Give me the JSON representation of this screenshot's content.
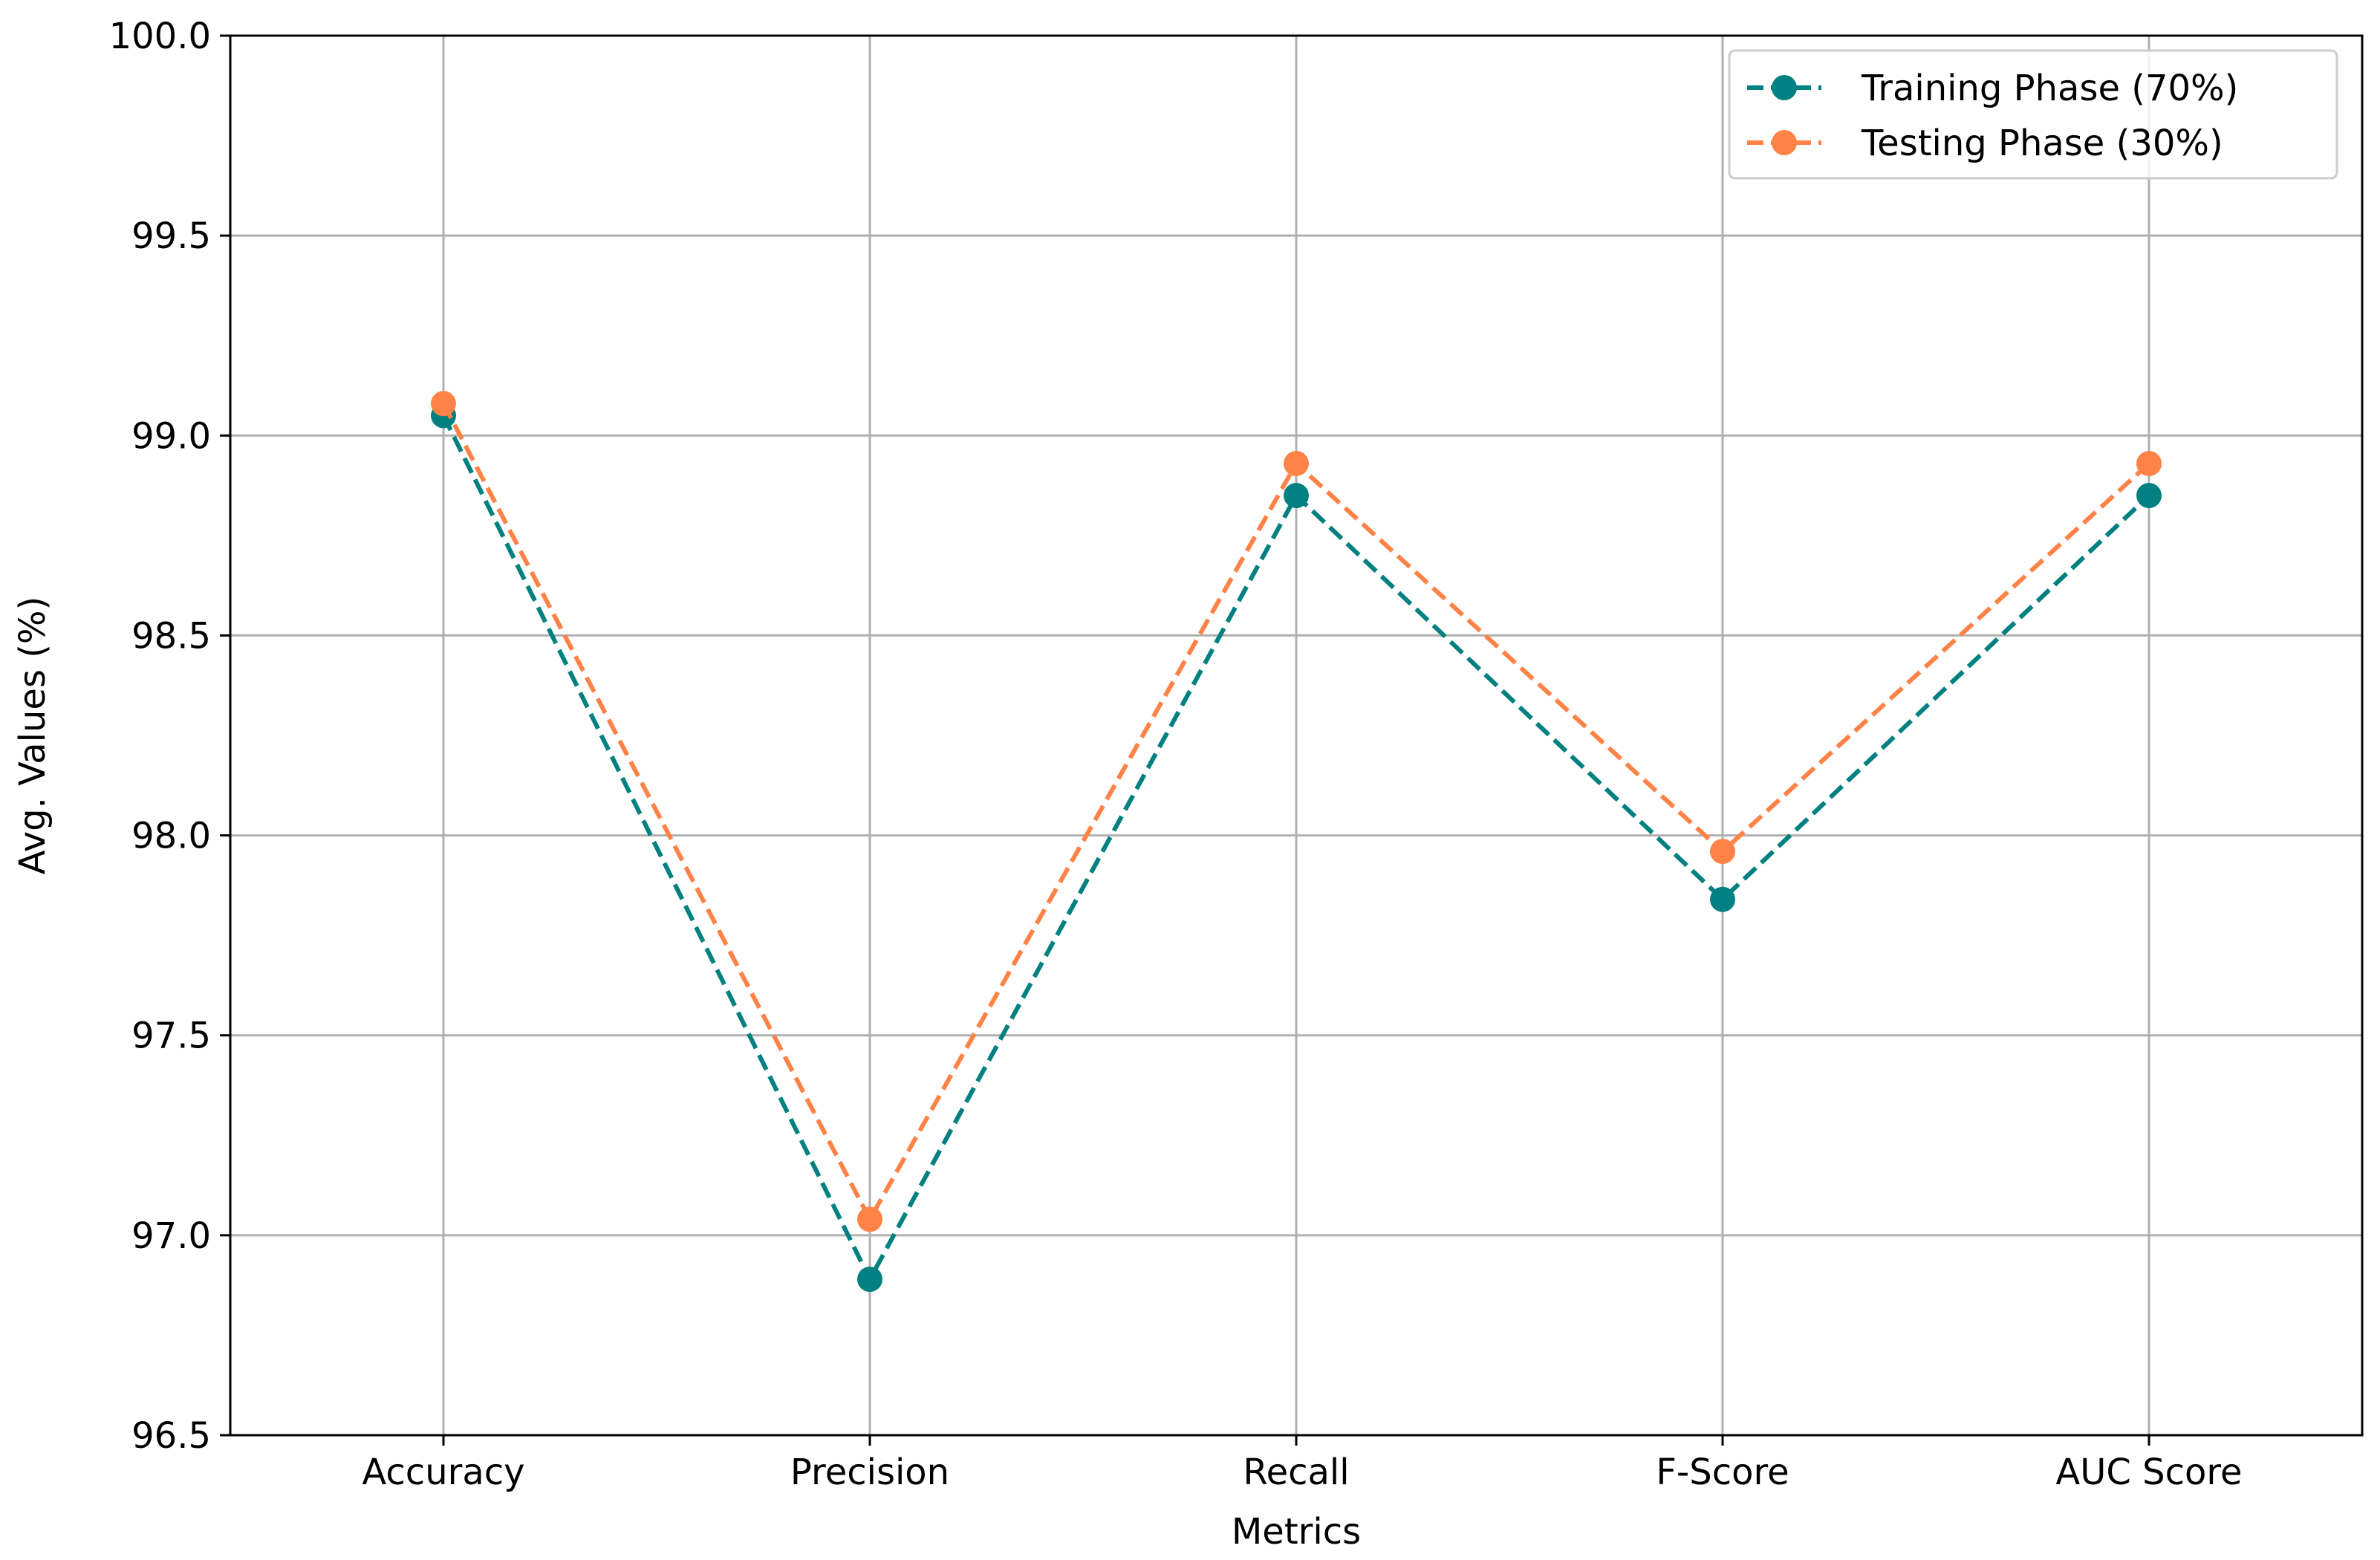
{
  "chart_data": {
    "type": "line",
    "xlabel": "Metrics",
    "ylabel": "Avg. Values (%)",
    "categories": [
      "Accuracy",
      "Precision",
      "Recall",
      "F-Score",
      "AUC Score"
    ],
    "ylim": [
      96.5,
      100.0
    ],
    "yticks": [
      96.5,
      97.0,
      97.5,
      98.0,
      98.5,
      99.0,
      99.5,
      100.0
    ],
    "ytick_labels": [
      "96.5",
      "97.0",
      "97.5",
      "98.0",
      "98.5",
      "99.0",
      "99.5",
      "100.0"
    ],
    "grid": true,
    "legend_position": "top-right",
    "series": [
      {
        "name": "Training Phase (70%)",
        "color": "#008080",
        "line_style": "dashed",
        "marker": "circle",
        "values": [
          99.05,
          96.89,
          98.85,
          97.84,
          98.85
        ]
      },
      {
        "name": "Testing Phase (30%)",
        "color": "#FF8247",
        "line_style": "dashed",
        "marker": "circle",
        "values": [
          99.08,
          97.04,
          98.93,
          97.96,
          98.93
        ]
      }
    ]
  }
}
